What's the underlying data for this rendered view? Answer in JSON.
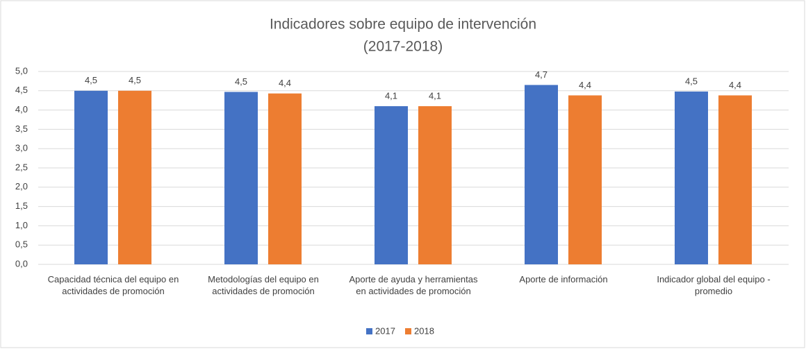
{
  "chart_data": {
    "type": "bar",
    "title": "Indicadores sobre equipo de intervención",
    "subtitle": "(2017-2018)",
    "categories": [
      "Capacidad técnica del equipo en actividades de promoción",
      "Metodologías del equipo en actividades de promoción",
      "Aporte de ayuda y herramientas en actividades de promoción",
      "Aporte de información",
      "Indicador global del equipo - promedio"
    ],
    "series": [
      {
        "name": "2017",
        "color": "#4472c4",
        "values": [
          4.5,
          4.47,
          4.1,
          4.65,
          4.48
        ],
        "value_labels": [
          "4,5",
          "4,5",
          "4,1",
          "4,7",
          "4,5"
        ]
      },
      {
        "name": "2018",
        "color": "#ed7d31",
        "values": [
          4.5,
          4.43,
          4.1,
          4.38,
          4.38
        ],
        "value_labels": [
          "4,5",
          "4,4",
          "4,1",
          "4,4",
          "4,4"
        ]
      }
    ],
    "ylim": [
      0,
      5
    ],
    "yticks": [
      {
        "value": 0,
        "label": "0,0"
      },
      {
        "value": 0.5,
        "label": "0,5"
      },
      {
        "value": 1,
        "label": "1,0"
      },
      {
        "value": 1.5,
        "label": "1,5"
      },
      {
        "value": 2,
        "label": "2,0"
      },
      {
        "value": 2.5,
        "label": "2,5"
      },
      {
        "value": 3,
        "label": "3,0"
      },
      {
        "value": 3.5,
        "label": "3,5"
      },
      {
        "value": 4,
        "label": "4,0"
      },
      {
        "value": 4.5,
        "label": "4,5"
      },
      {
        "value": 5,
        "label": "5,0"
      }
    ],
    "grid": true,
    "legend": "bottom"
  }
}
